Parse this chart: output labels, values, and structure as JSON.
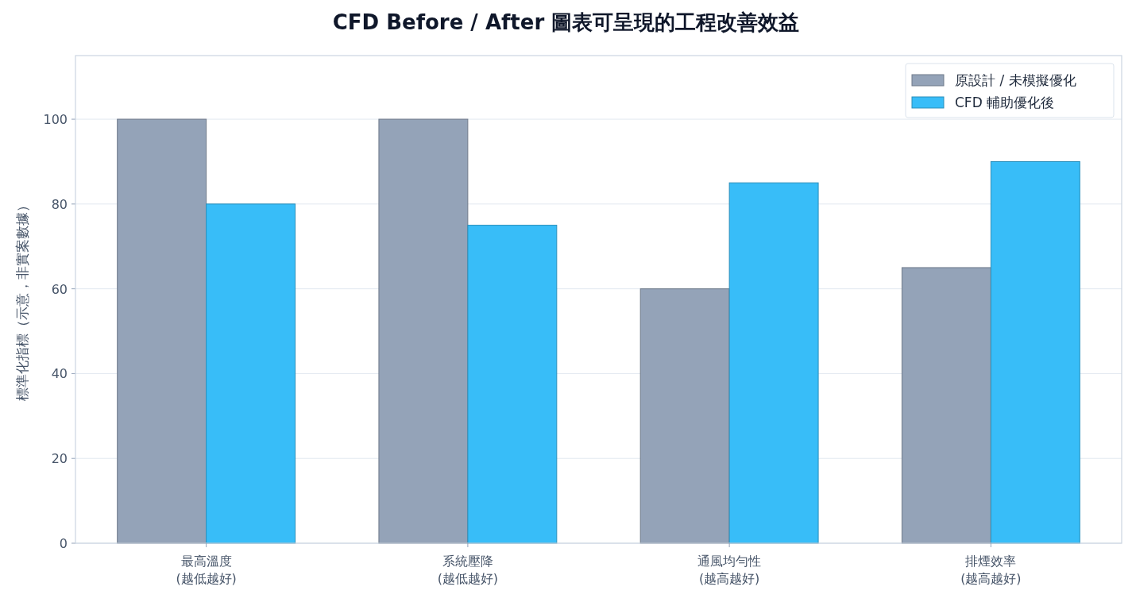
{
  "chart_data": {
    "type": "bar",
    "title": "CFD Before / After 圖表可呈現的工程改善效益",
    "ylabel": "標準化指標（示意，非實案數據）",
    "categories": [
      "最高溫度\n(越低越好)",
      "系統壓降\n(越低越好)",
      "通風均勻性\n(越高越好)",
      "排煙效率\n(越高越好)"
    ],
    "series": [
      {
        "name": "原設計 / 未模擬優化",
        "color": "#94a3b8",
        "values": [
          100,
          100,
          60,
          65
        ]
      },
      {
        "name": "CFD 輔助優化後",
        "color": "#38bdf8",
        "values": [
          80,
          75,
          85,
          90
        ]
      }
    ],
    "ylim": [
      0,
      115
    ],
    "yticks": [
      0,
      20,
      40,
      60,
      80,
      100
    ],
    "grid": "y",
    "legend": "top right"
  }
}
